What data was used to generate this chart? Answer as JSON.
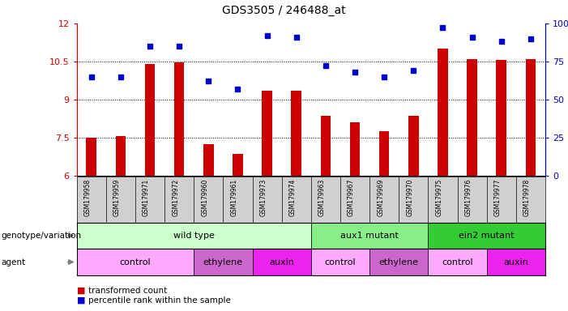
{
  "title": "GDS3505 / 246488_at",
  "samples": [
    "GSM179958",
    "GSM179959",
    "GSM179971",
    "GSM179972",
    "GSM179960",
    "GSM179961",
    "GSM179973",
    "GSM179974",
    "GSM179963",
    "GSM179967",
    "GSM179969",
    "GSM179970",
    "GSM179975",
    "GSM179976",
    "GSM179977",
    "GSM179978"
  ],
  "bar_values": [
    7.5,
    7.55,
    10.4,
    10.45,
    7.25,
    6.85,
    9.35,
    9.35,
    8.35,
    8.1,
    7.75,
    8.35,
    11.0,
    10.6,
    10.55,
    10.6
  ],
  "dot_values": [
    65,
    65,
    85,
    85,
    62,
    57,
    92,
    91,
    72,
    68,
    65,
    69,
    97,
    91,
    88,
    90
  ],
  "ylim": [
    6,
    12
  ],
  "yticks": [
    6,
    7.5,
    9,
    10.5,
    12
  ],
  "ytick_labels": [
    "6",
    "7.5",
    "9",
    "10.5",
    "12"
  ],
  "y2ticks": [
    0,
    25,
    50,
    75,
    100
  ],
  "y2tick_labels": [
    "0",
    "25",
    "50",
    "75",
    "100%"
  ],
  "bar_color": "#cc0000",
  "dot_color": "#0000cc",
  "genotype_groups": [
    {
      "label": "wild type",
      "start": 0,
      "end": 8,
      "color": "#ccffcc"
    },
    {
      "label": "aux1 mutant",
      "start": 8,
      "end": 12,
      "color": "#88ee88"
    },
    {
      "label": "ein2 mutant",
      "start": 12,
      "end": 16,
      "color": "#33cc33"
    }
  ],
  "agent_groups": [
    {
      "label": "control",
      "start": 0,
      "end": 4,
      "color": "#ffaaff"
    },
    {
      "label": "ethylene",
      "start": 4,
      "end": 6,
      "color": "#cc66cc"
    },
    {
      "label": "auxin",
      "start": 6,
      "end": 8,
      "color": "#ee22ee"
    },
    {
      "label": "control",
      "start": 8,
      "end": 10,
      "color": "#ffaaff"
    },
    {
      "label": "ethylene",
      "start": 10,
      "end": 12,
      "color": "#cc66cc"
    },
    {
      "label": "control",
      "start": 12,
      "end": 14,
      "color": "#ffaaff"
    },
    {
      "label": "auxin",
      "start": 14,
      "end": 16,
      "color": "#ee22ee"
    }
  ],
  "legend_bar_label": "transformed count",
  "legend_dot_label": "percentile rank within the sample",
  "genotype_label": "genotype/variation",
  "agent_label": "agent",
  "tick_bg_color": "#d0d0d0"
}
